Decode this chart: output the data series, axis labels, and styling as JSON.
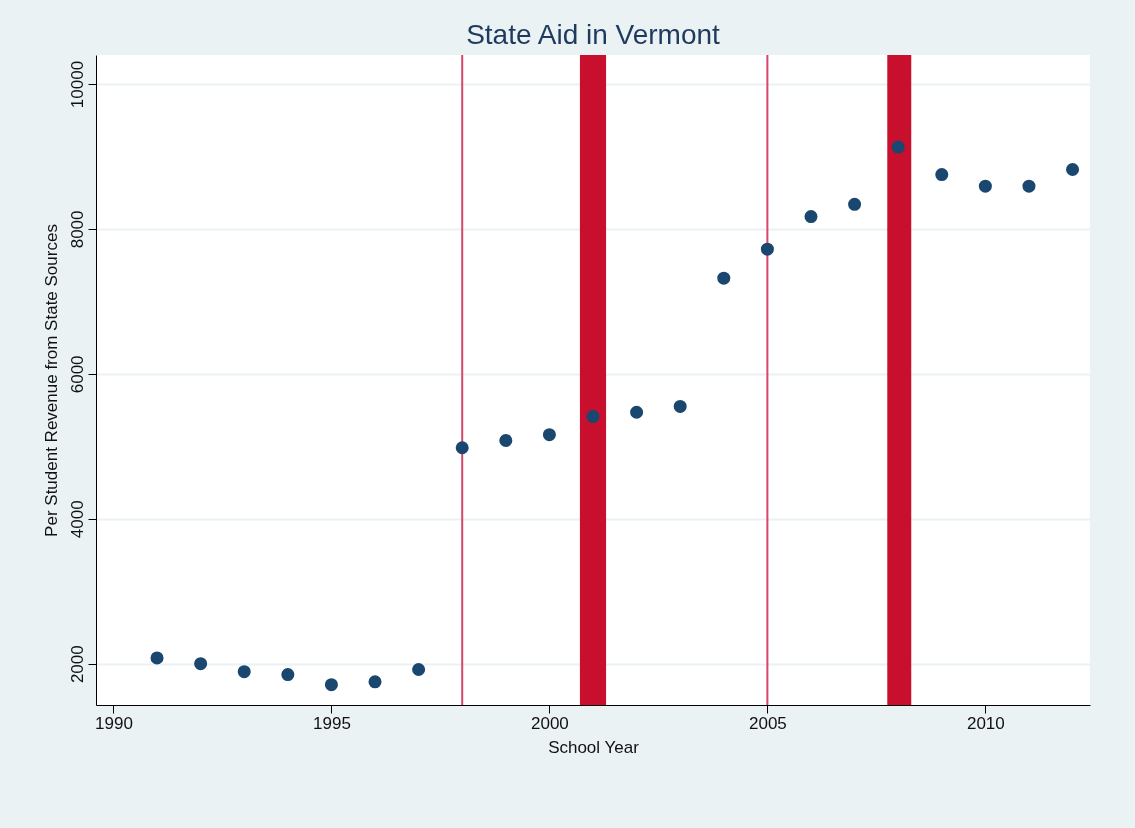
{
  "chart_data": {
    "type": "scatter",
    "title": "State Aid in Vermont",
    "xlabel": "School Year",
    "ylabel": "Per Student Revenue from State Sources",
    "x": [
      1991,
      1992,
      1993,
      1994,
      1995,
      1996,
      1997,
      1998,
      1999,
      2000,
      2001,
      2002,
      2003,
      2004,
      2005,
      2006,
      2007,
      2008,
      2009,
      2010,
      2011,
      2012
    ],
    "series": [
      {
        "color": "#1a476f",
        "values": [
          2080,
          2000,
          1890,
          1850,
          1710,
          1750,
          1920,
          4980,
          5080,
          5160,
          5410,
          5470,
          5550,
          7320,
          7720,
          8170,
          8340,
          9130,
          8750,
          8590,
          8590,
          8820
        ]
      }
    ],
    "xlim": [
      1989.6,
      2012.4
    ],
    "xticks": [
      1990,
      1995,
      2000,
      2005,
      2010
    ],
    "ylim": [
      1430,
      10400
    ],
    "yticks": [
      2000,
      4000,
      6000,
      8000,
      10000
    ],
    "ref_lines": [
      {
        "axis": "x",
        "value": 1998,
        "color": "#d6476b"
      },
      {
        "axis": "x",
        "value": 2005,
        "color": "#d6476b"
      }
    ],
    "bands": [
      {
        "axis": "x",
        "from": 2000.7,
        "to": 2001.3,
        "color": "#c8102e"
      },
      {
        "axis": "x",
        "from": 2007.75,
        "to": 2008.3,
        "color": "#c8102e"
      }
    ],
    "grid": "y",
    "marker": "circle"
  }
}
